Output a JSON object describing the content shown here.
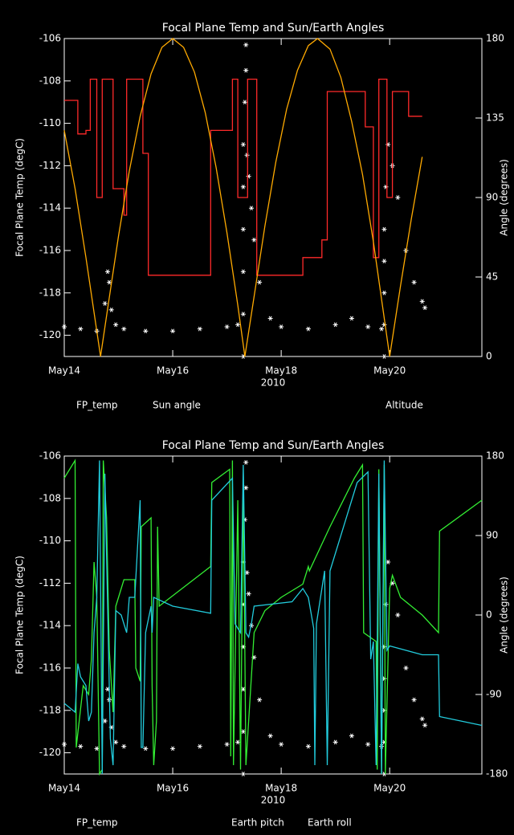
{
  "chart_data": [
    {
      "type": "line",
      "title": "Focal Plane Temp and Sun/Earth Angles",
      "y_label": "Focal Plane Temp (degC)",
      "y2_label": "Angle (degrees)",
      "x_label": "2010",
      "xlim": [
        14,
        21.7
      ],
      "xticks": [
        {
          "value": 14,
          "label": "May14"
        },
        {
          "value": 16,
          "label": "May16"
        },
        {
          "value": 18,
          "label": "May18"
        },
        {
          "value": 20,
          "label": "May20"
        }
      ],
      "ylim": [
        -121,
        -106
      ],
      "yticks": [
        -106,
        -108,
        -110,
        -112,
        -114,
        -116,
        -118,
        -120
      ],
      "y2lim": [
        0,
        180
      ],
      "y2ticks": [
        0,
        45,
        90,
        135,
        180
      ],
      "series": [
        {
          "name": "FP_temp",
          "color": "#ffffff",
          "mode": "markers",
          "x": [
            14.0,
            14.3,
            14.6,
            14.75,
            14.8,
            14.83,
            14.87,
            14.95,
            15.1,
            15.5,
            16.0,
            16.5,
            17.0,
            17.2,
            17.3,
            17.3,
            17.3,
            17.3,
            17.3,
            17.3,
            17.33,
            17.35,
            17.35,
            17.37,
            17.4,
            17.45,
            17.5,
            17.6,
            17.8,
            18.0,
            18.5,
            19.0,
            19.3,
            19.6,
            19.85,
            19.9,
            19.9,
            19.9,
            19.9,
            19.9,
            19.93,
            19.97,
            20.05,
            20.15,
            20.3,
            20.45,
            20.6,
            20.65
          ],
          "values": [
            -119.6,
            -119.7,
            -119.8,
            -118.5,
            -117.0,
            -117.5,
            -118.8,
            -119.5,
            -119.7,
            -119.8,
            -119.8,
            -119.7,
            -119.6,
            -119.5,
            -121.0,
            -119.0,
            -117.0,
            -115.0,
            -113.0,
            -111.0,
            -109.0,
            -107.5,
            -106.3,
            -111.5,
            -112.5,
            -114.0,
            -115.5,
            -117.5,
            -119.2,
            -119.6,
            -119.7,
            -119.5,
            -119.2,
            -119.6,
            -119.7,
            -121.0,
            -119.5,
            -118.0,
            -116.5,
            -115.0,
            -113.0,
            -111.0,
            -112.0,
            -113.5,
            -116.0,
            -117.5,
            -118.4,
            -118.7
          ]
        },
        {
          "name": "Sun angle",
          "color": "#ff2a2a",
          "mode": "lines",
          "axis": "y2",
          "x": [
            14.0,
            14.25,
            14.25,
            14.4,
            14.4,
            14.48,
            14.48,
            14.6,
            14.6,
            14.7,
            14.7,
            14.9,
            14.9,
            15.1,
            15.1,
            15.15,
            15.15,
            15.45,
            15.45,
            15.55,
            15.55,
            16.7,
            16.7,
            17.1,
            17.1,
            17.2,
            17.2,
            17.38,
            17.38,
            17.55,
            17.55,
            18.4,
            18.4,
            18.75,
            18.75,
            18.85,
            18.85,
            19.55,
            19.55,
            19.7,
            19.7,
            19.8,
            19.8,
            19.95,
            19.95,
            20.05,
            20.05,
            20.35,
            20.35,
            20.6
          ],
          "values": [
            145,
            145,
            126,
            126,
            128,
            128,
            157,
            157,
            90,
            90,
            157,
            157,
            95,
            95,
            80,
            80,
            157,
            157,
            115,
            115,
            46,
            46,
            128,
            128,
            157,
            157,
            90,
            90,
            157,
            157,
            46,
            46,
            56,
            56,
            66,
            66,
            150,
            150,
            130,
            130,
            56,
            56,
            157,
            157,
            90,
            90,
            150,
            150,
            136,
            136
          ]
        },
        {
          "name": "Altitude",
          "color": "#ffaa00",
          "mode": "lines",
          "axis": "y2",
          "x": [
            14.0,
            14.2,
            14.4,
            14.67,
            14.8,
            15.0,
            15.2,
            15.4,
            15.6,
            15.8,
            16.0,
            16.2,
            16.4,
            16.6,
            16.8,
            17.0,
            17.2,
            17.33,
            17.5,
            17.7,
            17.9,
            18.1,
            18.3,
            18.5,
            18.67,
            18.9,
            19.1,
            19.3,
            19.5,
            19.7,
            20.0,
            20.2,
            20.4,
            20.6
          ],
          "values": [
            128,
            95,
            56,
            0,
            27,
            68,
            105,
            136,
            160,
            175,
            180,
            175,
            161,
            138,
            107,
            70,
            29,
            0,
            34,
            74,
            110,
            140,
            162,
            176,
            180,
            174,
            158,
            133,
            103,
            65,
            0,
            40,
            78,
            113
          ]
        }
      ]
    },
    {
      "type": "line",
      "title": "Focal Plane Temp and Sun/Earth Angles",
      "y_label": "Focal Plane Temp (degC)",
      "y2_label": "Angle (degrees)",
      "x_label": "2010",
      "xlim": [
        14,
        21.7
      ],
      "xticks": [
        {
          "value": 14,
          "label": "May14"
        },
        {
          "value": 16,
          "label": "May16"
        },
        {
          "value": 18,
          "label": "May18"
        },
        {
          "value": 20,
          "label": "May20"
        }
      ],
      "ylim": [
        -121,
        -106
      ],
      "yticks": [
        -106,
        -108,
        -110,
        -112,
        -114,
        -116,
        -118,
        -120
      ],
      "y2lim": [
        -180,
        180
      ],
      "y2ticks": [
        -180,
        -90,
        0,
        90,
        180
      ],
      "series": [
        {
          "name": "FP_temp",
          "color": "#ffffff",
          "mode": "markers",
          "x": [
            14.0,
            14.3,
            14.6,
            14.75,
            14.8,
            14.83,
            14.87,
            14.95,
            15.1,
            15.5,
            16.0,
            16.5,
            17.0,
            17.2,
            17.3,
            17.3,
            17.3,
            17.3,
            17.3,
            17.3,
            17.33,
            17.35,
            17.35,
            17.37,
            17.4,
            17.45,
            17.5,
            17.6,
            17.8,
            18.0,
            18.5,
            19.0,
            19.3,
            19.6,
            19.85,
            19.9,
            19.9,
            19.9,
            19.9,
            19.9,
            19.93,
            19.97,
            20.05,
            20.15,
            20.3,
            20.45,
            20.6,
            20.65
          ],
          "values": [
            -119.6,
            -119.7,
            -119.8,
            -118.5,
            -117.0,
            -117.5,
            -118.8,
            -119.5,
            -119.7,
            -119.8,
            -119.8,
            -119.7,
            -119.6,
            -119.5,
            -121.0,
            -119.0,
            -117.0,
            -115.0,
            -113.0,
            -111.0,
            -109.0,
            -107.5,
            -106.3,
            -111.5,
            -112.5,
            -114.0,
            -115.5,
            -117.5,
            -119.2,
            -119.6,
            -119.7,
            -119.5,
            -119.2,
            -119.6,
            -119.7,
            -121.0,
            -119.5,
            -118.0,
            -116.5,
            -115.0,
            -113.0,
            -111.0,
            -112.0,
            -113.5,
            -116.0,
            -117.5,
            -118.4,
            -118.7
          ]
        },
        {
          "name": "Earth pitch",
          "color": "#33ee33",
          "mode": "lines",
          "axis": "y2",
          "x": [
            14.0,
            14.2,
            14.22,
            14.35,
            14.45,
            14.5,
            14.55,
            14.6,
            14.65,
            14.7,
            14.72,
            14.78,
            14.83,
            14.9,
            14.95,
            15.1,
            15.3,
            15.32,
            15.4,
            15.42,
            15.6,
            15.62,
            15.65,
            15.7,
            15.72,
            15.75,
            16.7,
            16.72,
            17.05,
            17.07,
            17.1,
            17.12,
            17.2,
            17.25,
            17.3,
            17.35,
            17.4,
            17.5,
            17.7,
            18.0,
            18.4,
            18.5,
            18.52,
            18.9,
            19.35,
            19.5,
            19.52,
            19.75,
            19.77,
            19.8,
            19.85,
            19.9,
            19.92,
            20.0,
            20.05,
            20.2,
            20.6,
            20.9,
            20.92,
            21.7
          ],
          "values": [
            155,
            175,
            -150,
            -80,
            -90,
            -50,
            60,
            20,
            -180,
            -175,
            175,
            110,
            -40,
            -110,
            10,
            40,
            40,
            -60,
            -75,
            100,
            110,
            -80,
            -170,
            -120,
            100,
            10,
            55,
            150,
            165,
            -160,
            175,
            -170,
            130,
            -175,
            150,
            -170,
            -120,
            -20,
            5,
            20,
            35,
            55,
            50,
            100,
            155,
            170,
            -20,
            -30,
            -175,
            165,
            -180,
            170,
            -180,
            30,
            45,
            20,
            0,
            -20,
            95,
            130
          ]
        },
        {
          "name": "Earth roll",
          "color": "#22ccdd",
          "mode": "lines",
          "axis": "y2",
          "x": [
            14.0,
            14.2,
            14.25,
            14.3,
            14.4,
            14.45,
            14.5,
            14.55,
            14.6,
            14.65,
            14.7,
            14.75,
            14.8,
            14.85,
            14.9,
            14.95,
            15.05,
            15.15,
            15.2,
            15.3,
            15.4,
            15.42,
            15.45,
            15.5,
            15.6,
            15.62,
            15.65,
            16.0,
            16.7,
            16.72,
            17.1,
            17.15,
            17.25,
            17.3,
            17.35,
            17.4,
            17.45,
            17.5,
            18.2,
            18.4,
            18.5,
            18.6,
            18.62,
            18.65,
            18.8,
            18.85,
            18.9,
            19.4,
            19.6,
            19.65,
            19.7,
            19.75,
            19.8,
            19.85,
            19.9,
            19.95,
            20.0,
            20.3,
            20.6,
            20.9,
            20.92,
            21.7
          ],
          "values": [
            -100,
            -110,
            -55,
            -70,
            -80,
            -120,
            -110,
            -20,
            20,
            175,
            -180,
            160,
            10,
            -140,
            -170,
            5,
            0,
            -20,
            20,
            20,
            130,
            -150,
            -150,
            -20,
            10,
            -20,
            20,
            10,
            2,
            130,
            155,
            -10,
            -20,
            170,
            -20,
            -25,
            -10,
            10,
            15,
            30,
            20,
            -15,
            -170,
            -10,
            50,
            -170,
            50,
            150,
            162,
            -50,
            -30,
            -170,
            160,
            -180,
            175,
            -40,
            -35,
            -40,
            -45,
            -45,
            -115,
            -125
          ]
        }
      ]
    }
  ]
}
